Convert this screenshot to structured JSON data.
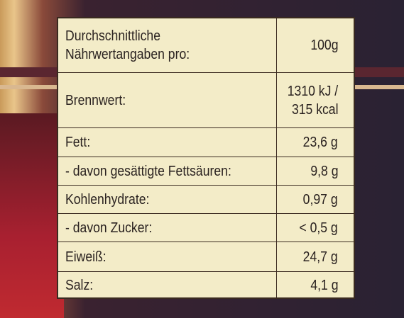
{
  "table": {
    "header": {
      "label": [
        "Durchschnittliche",
        "Nährwertangaben pro:"
      ],
      "value": "100g"
    },
    "rows": [
      {
        "label": [
          "Brennwert:"
        ],
        "value": [
          "1310 kJ /",
          "315 kcal"
        ]
      },
      {
        "label": [
          "Fett:"
        ],
        "value": [
          "23,6 g"
        ]
      },
      {
        "label": [
          "- davon gesättigte Fettsäuren:"
        ],
        "value": [
          "9,8 g"
        ]
      },
      {
        "label": [
          "Kohlenhydrate:"
        ],
        "value": [
          "0,97 g"
        ]
      },
      {
        "label": [
          "- davon Zucker:"
        ],
        "value": [
          "< 0,5 g"
        ]
      },
      {
        "label": [
          "Eiweiß:"
        ],
        "value": [
          "24,7 g"
        ]
      },
      {
        "label": [
          "Salz:"
        ],
        "value": [
          "4,1 g"
        ]
      }
    ]
  }
}
